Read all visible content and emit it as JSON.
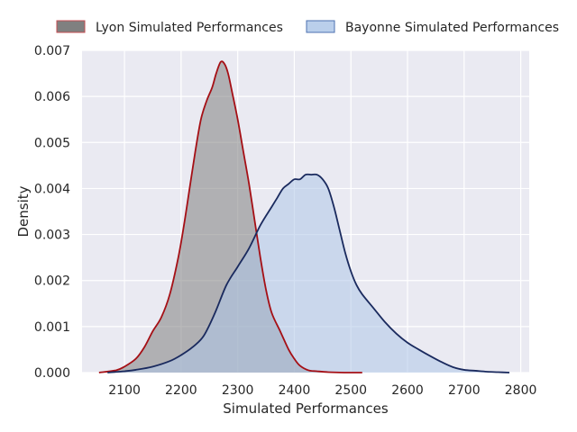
{
  "chart_data": {
    "type": "area",
    "xlabel": "Simulated Performances",
    "ylabel": "Density",
    "xlim": [
      2025,
      2815
    ],
    "ylim": [
      0,
      0.007
    ],
    "xticks": [
      2100,
      2200,
      2300,
      2400,
      2500,
      2600,
      2700,
      2800
    ],
    "yticks": [
      0.0,
      0.001,
      0.002,
      0.003,
      0.004,
      0.005,
      0.006,
      0.007
    ],
    "xtick_labels": [
      "2100",
      "2200",
      "2300",
      "2400",
      "2500",
      "2600",
      "2700",
      "2800"
    ],
    "ytick_labels": [
      "0.000",
      "0.001",
      "0.002",
      "0.003",
      "0.004",
      "0.005",
      "0.006",
      "0.007"
    ],
    "grid": true,
    "legend_position": "top",
    "series": [
      {
        "name": "Lyon Simulated Performances",
        "line_color": "#a50f15",
        "fill_color": "#808080",
        "x": [
          2055,
          2085,
          2100,
          2120,
          2135,
          2150,
          2165,
          2180,
          2195,
          2205,
          2215,
          2225,
          2235,
          2245,
          2255,
          2262,
          2270,
          2277,
          2283,
          2290,
          2300,
          2310,
          2320,
          2330,
          2340,
          2350,
          2360,
          2375,
          2390,
          2400,
          2410,
          2425,
          2440,
          2460,
          2490,
          2520
        ],
        "y": [
          0.0,
          5e-05,
          0.00013,
          0.0003,
          0.00055,
          0.0009,
          0.0012,
          0.0017,
          0.0025,
          0.0032,
          0.004,
          0.0048,
          0.0055,
          0.0059,
          0.0062,
          0.0065,
          0.00675,
          0.0067,
          0.0065,
          0.0061,
          0.0055,
          0.0048,
          0.0041,
          0.0033,
          0.0025,
          0.0018,
          0.0013,
          0.0009,
          0.0005,
          0.0003,
          0.00015,
          5e-05,
          3e-05,
          1e-05,
          0.0,
          0.0
        ]
      },
      {
        "name": "Bayonne Simulated Performances",
        "line_color": "#1a2a5e",
        "fill_color": "#aec7e8",
        "x": [
          2070,
          2100,
          2120,
          2150,
          2180,
          2200,
          2220,
          2240,
          2260,
          2280,
          2300,
          2320,
          2340,
          2360,
          2370,
          2380,
          2390,
          2400,
          2410,
          2420,
          2430,
          2440,
          2450,
          2460,
          2470,
          2480,
          2490,
          2500,
          2510,
          2520,
          2540,
          2560,
          2580,
          2600,
          2620,
          2640,
          2660,
          2680,
          2700,
          2720,
          2740,
          2760,
          2780
        ],
        "y": [
          0.0,
          3e-05,
          6e-05,
          0.00013,
          0.00025,
          0.00038,
          0.00055,
          0.0008,
          0.0013,
          0.0019,
          0.0023,
          0.0027,
          0.0032,
          0.0036,
          0.0038,
          0.004,
          0.0041,
          0.0042,
          0.0042,
          0.0043,
          0.0043,
          0.0043,
          0.0042,
          0.004,
          0.0036,
          0.0031,
          0.0026,
          0.0022,
          0.0019,
          0.0017,
          0.0014,
          0.0011,
          0.00085,
          0.00065,
          0.0005,
          0.00036,
          0.00023,
          0.00012,
          6e-05,
          4e-05,
          2e-05,
          1e-05,
          0.0
        ]
      }
    ]
  }
}
